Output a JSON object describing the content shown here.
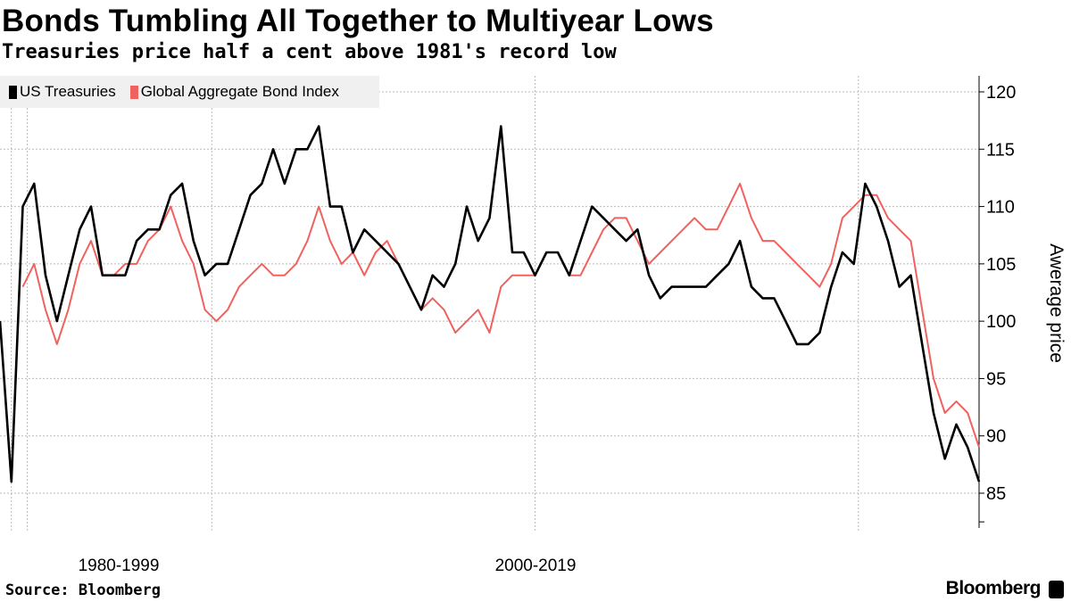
{
  "title": "Bonds Tumbling All Together to Multiyear Lows",
  "subtitle": "Treasuries price half a cent above 1981's record low",
  "source": "Source: Bloomberg",
  "brand": "Bloomberg",
  "chart_data": {
    "type": "line",
    "title": "Bonds Tumbling All Together to Multiyear Lows",
    "subtitle": "Treasuries price half a cent above 1981's record low",
    "xlabel": "",
    "ylabel": "Awerage price",
    "x_category_labels": [
      "1980-1999",
      "2000-2019"
    ],
    "x_start": 1980,
    "x_step": 0.5,
    "xlim": [
      1980,
      2023
    ],
    "ylim": [
      82,
      122
    ],
    "yticks": [
      85,
      90,
      95,
      100,
      105,
      110,
      115,
      120
    ],
    "ytick_labels": [
      "85",
      "90",
      "95",
      "100",
      "105",
      "110",
      "115",
      "120"
    ],
    "y_axis_side": "right",
    "vgrid": [
      1980.5,
      1981.2,
      1989.3,
      2003.5,
      2017.7
    ],
    "grid": true,
    "legend_position": "top-left",
    "series": [
      {
        "name": "US Treasuries",
        "color": "#000000",
        "values": [
          100,
          86,
          110,
          112,
          104,
          100,
          104,
          108,
          110,
          104,
          104,
          104,
          107,
          108,
          108,
          111,
          112,
          107,
          104,
          105,
          105,
          108,
          111,
          112,
          115,
          112,
          115,
          115,
          117,
          110,
          110,
          106,
          108,
          107,
          106,
          105,
          103,
          101,
          104,
          103,
          105,
          110,
          107,
          109,
          117,
          106,
          106,
          104,
          106,
          106,
          104,
          107,
          110,
          109,
          108,
          107,
          108,
          104,
          102,
          103,
          103,
          103,
          103,
          104,
          105,
          107,
          103,
          102,
          102,
          100,
          98,
          98,
          99,
          103,
          106,
          105,
          112,
          110,
          107,
          103,
          104,
          98,
          92,
          88,
          91,
          89,
          86
        ]
      },
      {
        "name": "Global Aggregate Bond Index",
        "color": "#f0625f",
        "values": [
          null,
          null,
          103,
          105,
          101,
          98,
          101,
          105,
          107,
          104,
          104,
          105,
          105,
          107,
          108,
          110,
          107,
          105,
          101,
          100,
          101,
          103,
          104,
          105,
          104,
          104,
          105,
          107,
          110,
          107,
          105,
          106,
          104,
          106,
          107,
          105,
          103,
          101,
          102,
          101,
          99,
          100,
          101,
          99,
          103,
          104,
          104,
          104,
          106,
          106,
          104,
          104,
          106,
          108,
          109,
          109,
          107,
          105,
          106,
          107,
          108,
          109,
          108,
          108,
          110,
          112,
          109,
          107,
          107,
          106,
          105,
          104,
          103,
          105,
          109,
          110,
          111,
          111,
          109,
          108,
          107,
          101,
          95,
          92,
          93,
          92,
          89
        ]
      }
    ]
  }
}
